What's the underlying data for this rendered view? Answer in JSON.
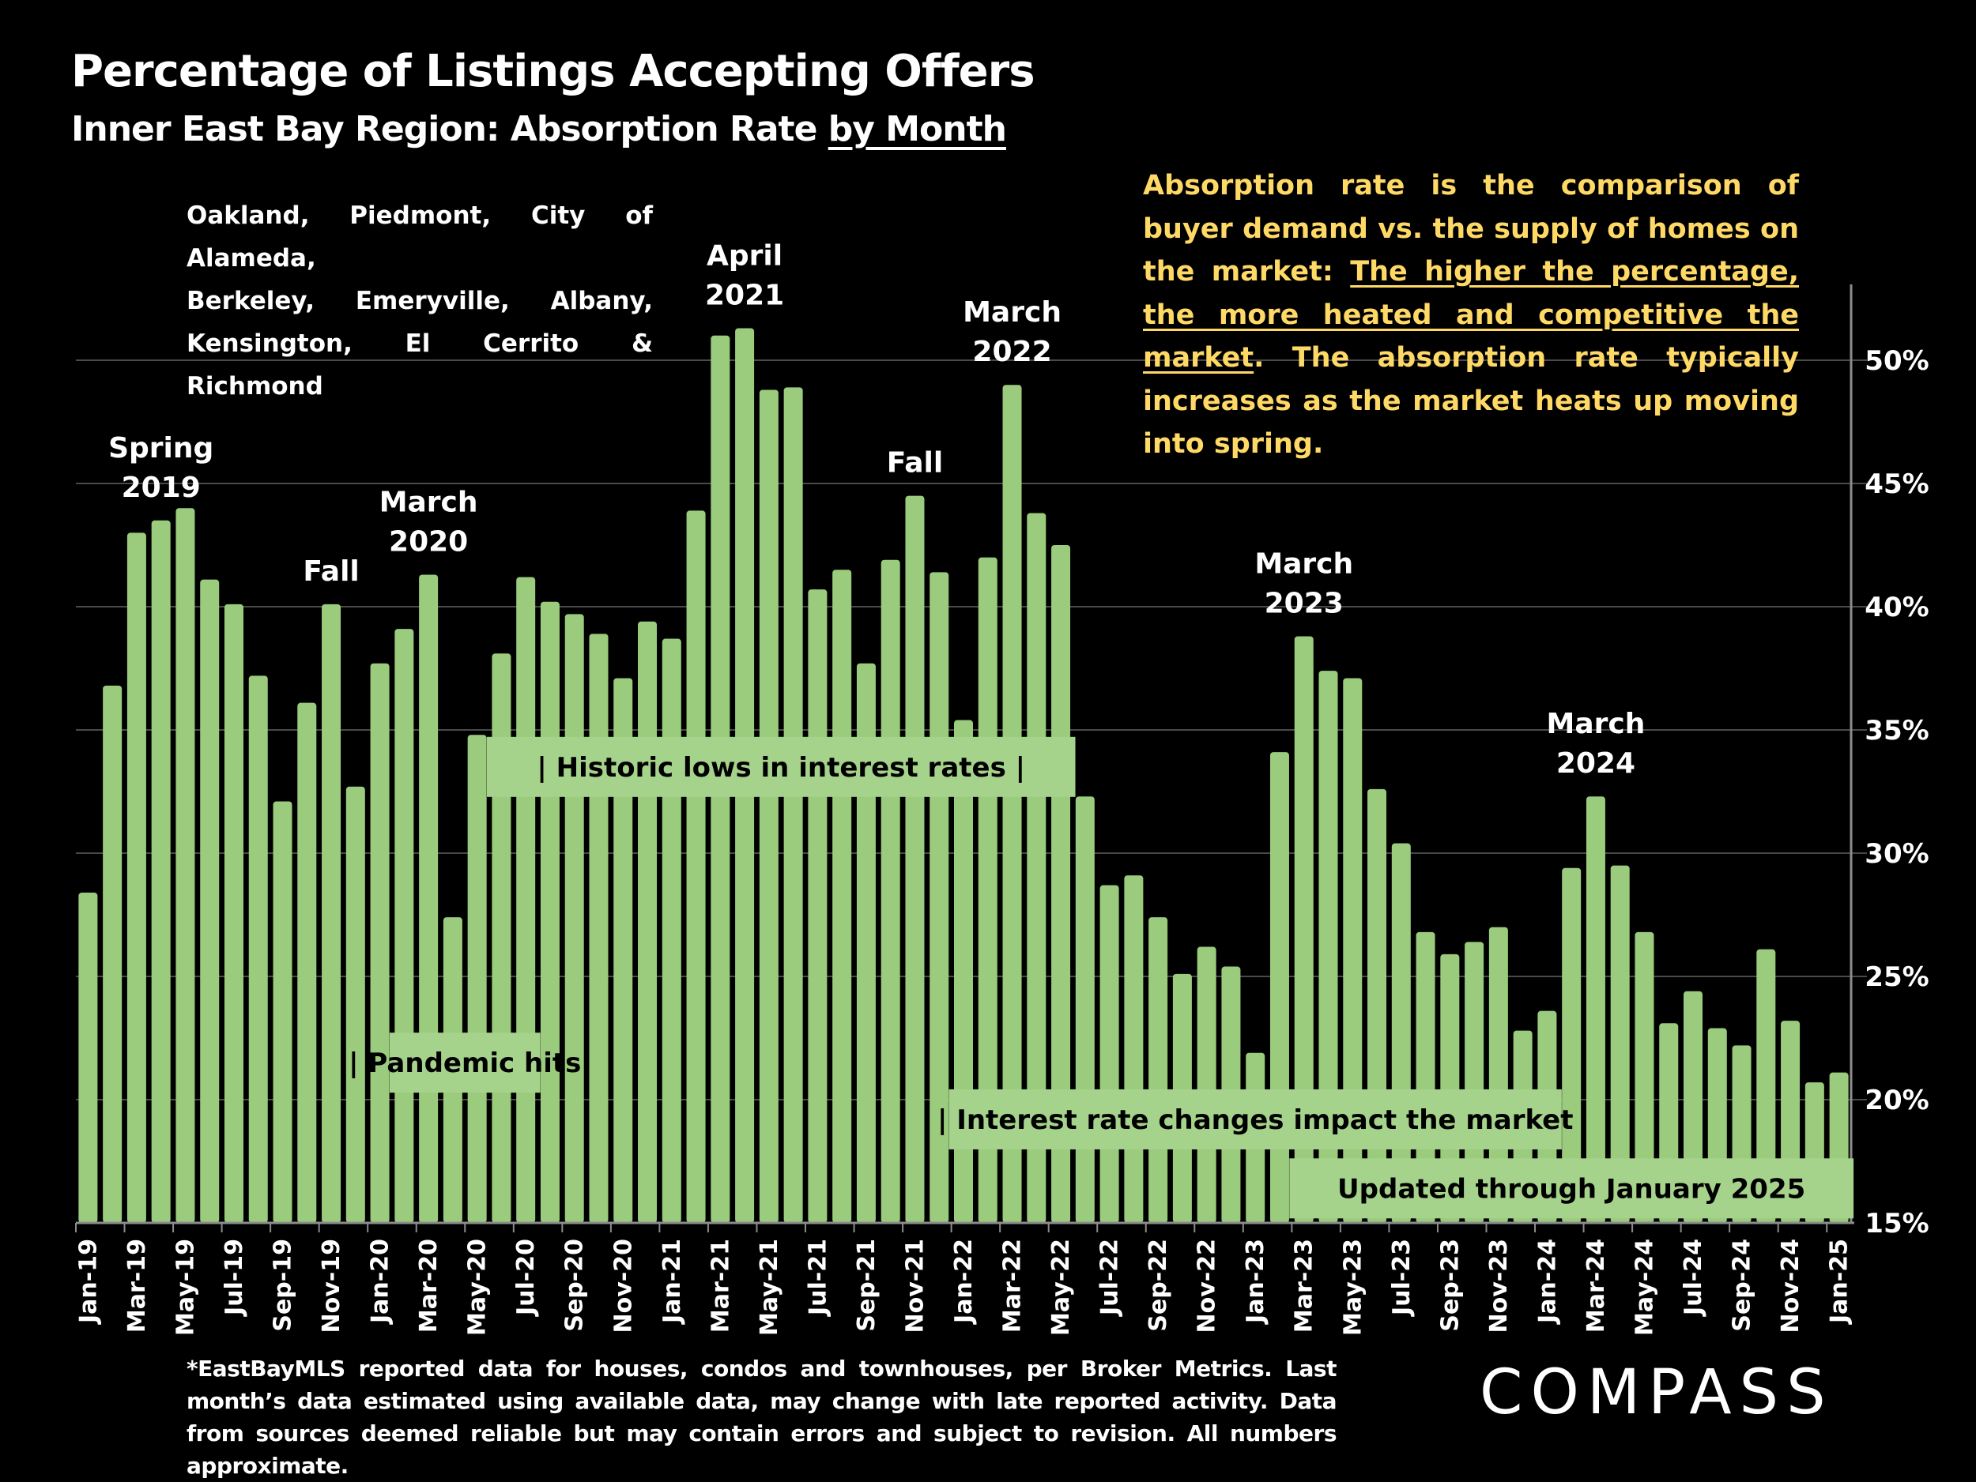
{
  "header": {
    "title": "Percentage of Listings Accepting Offers",
    "subtitle_main": "Inner East Bay Region:  Absorption Rate ",
    "subtitle_underlined": "by Month"
  },
  "cities": [
    "Oakland, Piedmont, City of Alameda,",
    "Berkeley,  Emeryville,  Albany,",
    "Kensington, El Cerrito & Richmond"
  ],
  "note": {
    "part1": "Absorption rate is the comparison of buyer demand vs. the supply of homes on the market: ",
    "underlined": "The higher the percentage, the more heated and competitive the market",
    "part2": ". The absorption rate typically increases as the market heats up moving into spring."
  },
  "footer": {
    "text": "*EastBayMLS reported data for houses, condos and townhouses, per Broker Metrics. Last month’s data estimated using available data, may change with late reported activity. Data from sources deemed reliable but may contain errors and subject to revision. All numbers approximate."
  },
  "logo": {
    "text": "COMPASS"
  },
  "colors": {
    "bar": "#9BCB7C",
    "annotation_box": "#A6D38C",
    "note_text": "#FFD966",
    "gridline": "#4a4a4a",
    "axis": "#8c8c8c"
  },
  "chart_data": {
    "type": "bar",
    "title": "Percentage of Listings Accepting Offers",
    "xlabel": "",
    "ylabel": "",
    "ylim": [
      15,
      52
    ],
    "y_ticks": [
      15,
      20,
      25,
      30,
      35,
      40,
      45,
      50
    ],
    "y_tick_labels": [
      "15%",
      "20%",
      "25%",
      "30%",
      "35%",
      "40%",
      "45%",
      "50%"
    ],
    "y_axis_side": "right",
    "grid": true,
    "categories": [
      "Jan-19",
      "Feb-19",
      "Mar-19",
      "Apr-19",
      "May-19",
      "Jun-19",
      "Jul-19",
      "Aug-19",
      "Sep-19",
      "Oct-19",
      "Nov-19",
      "Dec-19",
      "Jan-20",
      "Feb-20",
      "Mar-20",
      "Apr-20",
      "May-20",
      "Jun-20",
      "Jul-20",
      "Aug-20",
      "Sep-20",
      "Oct-20",
      "Nov-20",
      "Dec-20",
      "Jan-21",
      "Feb-21",
      "Mar-21",
      "Apr-21",
      "May-21",
      "Jun-21",
      "Jul-21",
      "Aug-21",
      "Sep-21",
      "Oct-21",
      "Nov-21",
      "Dec-21",
      "Jan-22",
      "Feb-22",
      "Mar-22",
      "Apr-22",
      "May-22",
      "Jun-22",
      "Jul-22",
      "Aug-22",
      "Sep-22",
      "Oct-22",
      "Nov-22",
      "Dec-22",
      "Jan-23",
      "Feb-23",
      "Mar-23",
      "Apr-23",
      "May-23",
      "Jun-23",
      "Jul-23",
      "Aug-23",
      "Sep-23",
      "Oct-23",
      "Nov-23",
      "Dec-23",
      "Jan-24",
      "Feb-24",
      "Mar-24",
      "Apr-24",
      "May-24",
      "Jun-24",
      "Jul-24",
      "Aug-24",
      "Sep-24",
      "Oct-24",
      "Nov-24",
      "Dec-24",
      "Jan-25"
    ],
    "x_tick_labels_every": 2,
    "values": [
      28.4,
      36.8,
      43.0,
      43.5,
      44.0,
      41.1,
      40.1,
      37.2,
      32.1,
      36.1,
      40.1,
      32.7,
      37.7,
      39.1,
      41.3,
      27.4,
      34.8,
      38.1,
      41.2,
      40.2,
      39.7,
      38.9,
      37.1,
      39.4,
      38.7,
      43.9,
      51.0,
      51.3,
      48.8,
      48.9,
      40.7,
      41.5,
      37.7,
      41.9,
      44.5,
      41.4,
      35.4,
      42.0,
      49.0,
      43.8,
      42.5,
      32.3,
      28.7,
      29.1,
      27.4,
      25.1,
      26.2,
      25.4,
      21.9,
      34.1,
      38.8,
      37.4,
      37.1,
      32.6,
      30.4,
      26.8,
      25.9,
      26.4,
      27.0,
      22.8,
      23.6,
      29.4,
      32.3,
      29.5,
      26.8,
      23.1,
      24.4,
      22.9,
      22.2,
      26.1,
      23.2,
      20.7,
      21.1
    ],
    "peak_labels": [
      {
        "line1": "Spring",
        "line2": "2019",
        "at": "Apr-19"
      },
      {
        "line1": "Fall",
        "line2": "",
        "at": "Nov-19"
      },
      {
        "line1": "March",
        "line2": "2020",
        "at": "Mar-20"
      },
      {
        "line1": "April",
        "line2": "2021",
        "at": "Apr-21"
      },
      {
        "line1": "Fall",
        "line2": "",
        "at": "Nov-21"
      },
      {
        "line1": "March",
        "line2": "2022",
        "at": "Mar-22"
      },
      {
        "line1": "March",
        "line2": "2023",
        "at": "Mar-23"
      },
      {
        "line1": "March",
        "line2": "2024",
        "at": "Mar-24"
      }
    ],
    "annotations": [
      {
        "text": "|      Historic lows in interest rates      |",
        "from": "Jun-20",
        "to": "May-22",
        "level": 33.5
      },
      {
        "text": "| Pandemic hits",
        "from": "Feb-20",
        "to": "Jul-20",
        "level": 21.5
      },
      {
        "text": "| Interest rate changes impact the market",
        "from": "Jan-22",
        "to": "Jan-24",
        "level": 19.2
      },
      {
        "text": "Updated through January 2025",
        "from": "Mar-23",
        "to": "Jan-25",
        "level": 16.4
      }
    ]
  }
}
